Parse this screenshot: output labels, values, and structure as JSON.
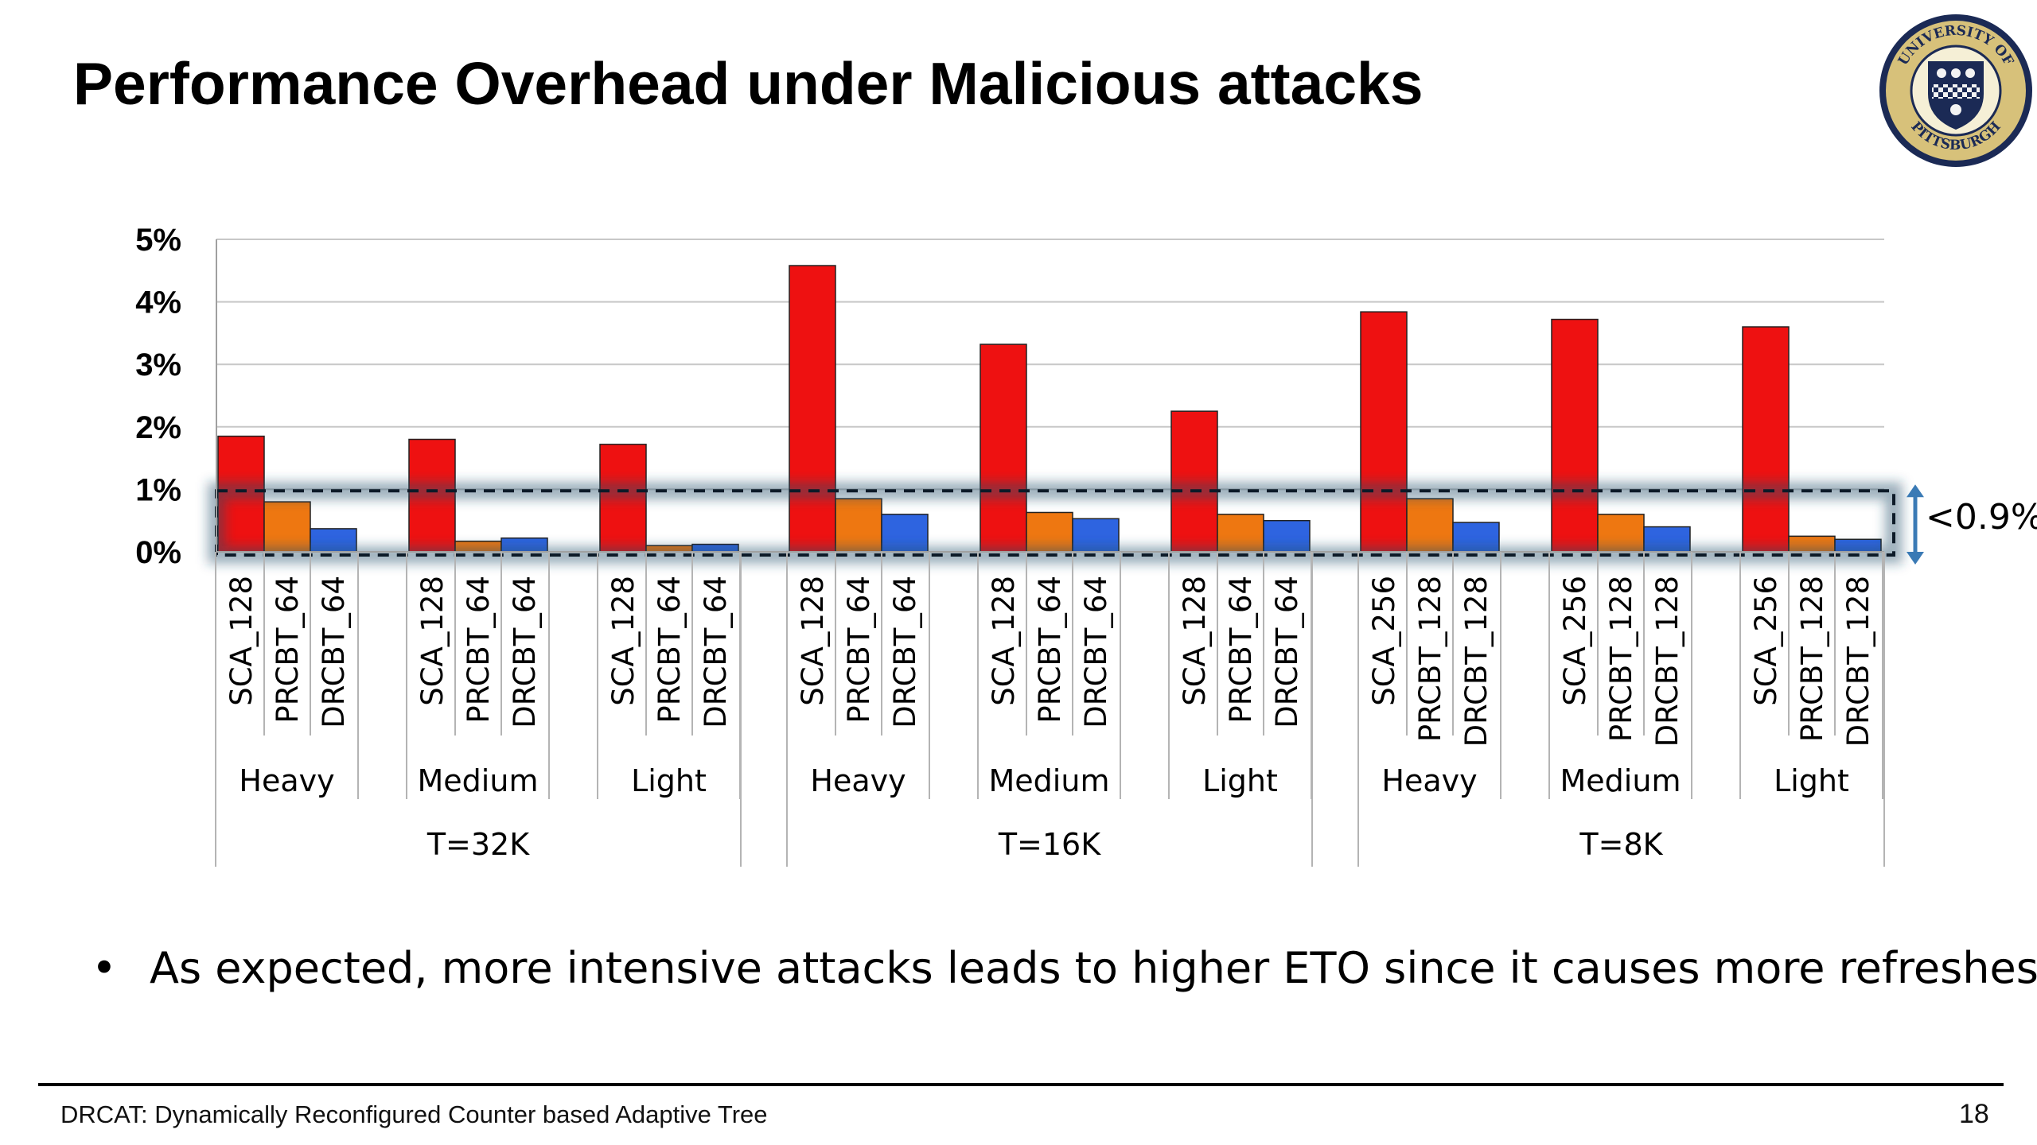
{
  "slide": {
    "title": "Performance Overhead under Malicious attacks",
    "bullet": "As expected, more intensive attacks leads to higher ETO since it causes more refreshes.",
    "footer": "DRCAT: Dynamically Reconfigured Counter based Adaptive Tree",
    "page_number": "18",
    "logo_icon": "university-of-pittsburgh-seal",
    "logo_text_top": "UNIVERSITY OF",
    "logo_text_bottom": "PITTSBURGH"
  },
  "chart_data": {
    "type": "bar",
    "title": "",
    "xlabel": "",
    "ylabel": "",
    "ylim": [
      0,
      5
    ],
    "yticks": [
      "0%",
      "1%",
      "2%",
      "3%",
      "4%",
      "5%"
    ],
    "grid": true,
    "groups": [
      {
        "threshold": "T=32K",
        "intensities": [
          {
            "label": "Heavy",
            "bars": [
              {
                "name": "SCA_128",
                "value": 1.85
              },
              {
                "name": "PRCBT_64",
                "value": 0.8
              },
              {
                "name": "DRCBT_64",
                "value": 0.37
              }
            ]
          },
          {
            "label": "Medium",
            "bars": [
              {
                "name": "SCA_128",
                "value": 1.8
              },
              {
                "name": "PRCBT_64",
                "value": 0.17
              },
              {
                "name": "DRCBT_64",
                "value": 0.22
              }
            ]
          },
          {
            "label": "Light",
            "bars": [
              {
                "name": "SCA_128",
                "value": 1.72
              },
              {
                "name": "PRCBT_64",
                "value": 0.1
              },
              {
                "name": "DRCBT_64",
                "value": 0.12
              }
            ]
          }
        ]
      },
      {
        "threshold": "T=16K",
        "intensities": [
          {
            "label": "Heavy",
            "bars": [
              {
                "name": "SCA_128",
                "value": 4.58
              },
              {
                "name": "PRCBT_64",
                "value": 0.85
              },
              {
                "name": "DRCBT_64",
                "value": 0.6
              }
            ]
          },
          {
            "label": "Medium",
            "bars": [
              {
                "name": "SCA_128",
                "value": 3.32
              },
              {
                "name": "PRCBT_64",
                "value": 0.63
              },
              {
                "name": "DRCBT_64",
                "value": 0.53
              }
            ]
          },
          {
            "label": "Light",
            "bars": [
              {
                "name": "SCA_128",
                "value": 2.25
              },
              {
                "name": "PRCBT_64",
                "value": 0.6
              },
              {
                "name": "DRCBT_64",
                "value": 0.5
              }
            ]
          }
        ]
      },
      {
        "threshold": "T=8K",
        "intensities": [
          {
            "label": "Heavy",
            "bars": [
              {
                "name": "SCA_256",
                "value": 3.84
              },
              {
                "name": "PRCBT_128",
                "value": 0.85
              },
              {
                "name": "DRCBT_128",
                "value": 0.47
              }
            ]
          },
          {
            "label": "Medium",
            "bars": [
              {
                "name": "SCA_256",
                "value": 3.72
              },
              {
                "name": "PRCBT_128",
                "value": 0.6
              },
              {
                "name": "DRCBT_128",
                "value": 0.4
              }
            ]
          },
          {
            "label": "Light",
            "bars": [
              {
                "name": "SCA_256",
                "value": 3.6
              },
              {
                "name": "PRCBT_128",
                "value": 0.25
              },
              {
                "name": "DRCBT_128",
                "value": 0.2
              }
            ]
          }
        ]
      }
    ],
    "series_colors": {
      "SCA": "#ee1111",
      "PRCBT": "#ee7711",
      "DRCBT": "#2e64e0"
    },
    "annotation": {
      "text": "<0.9%",
      "value": 0.9
    }
  }
}
